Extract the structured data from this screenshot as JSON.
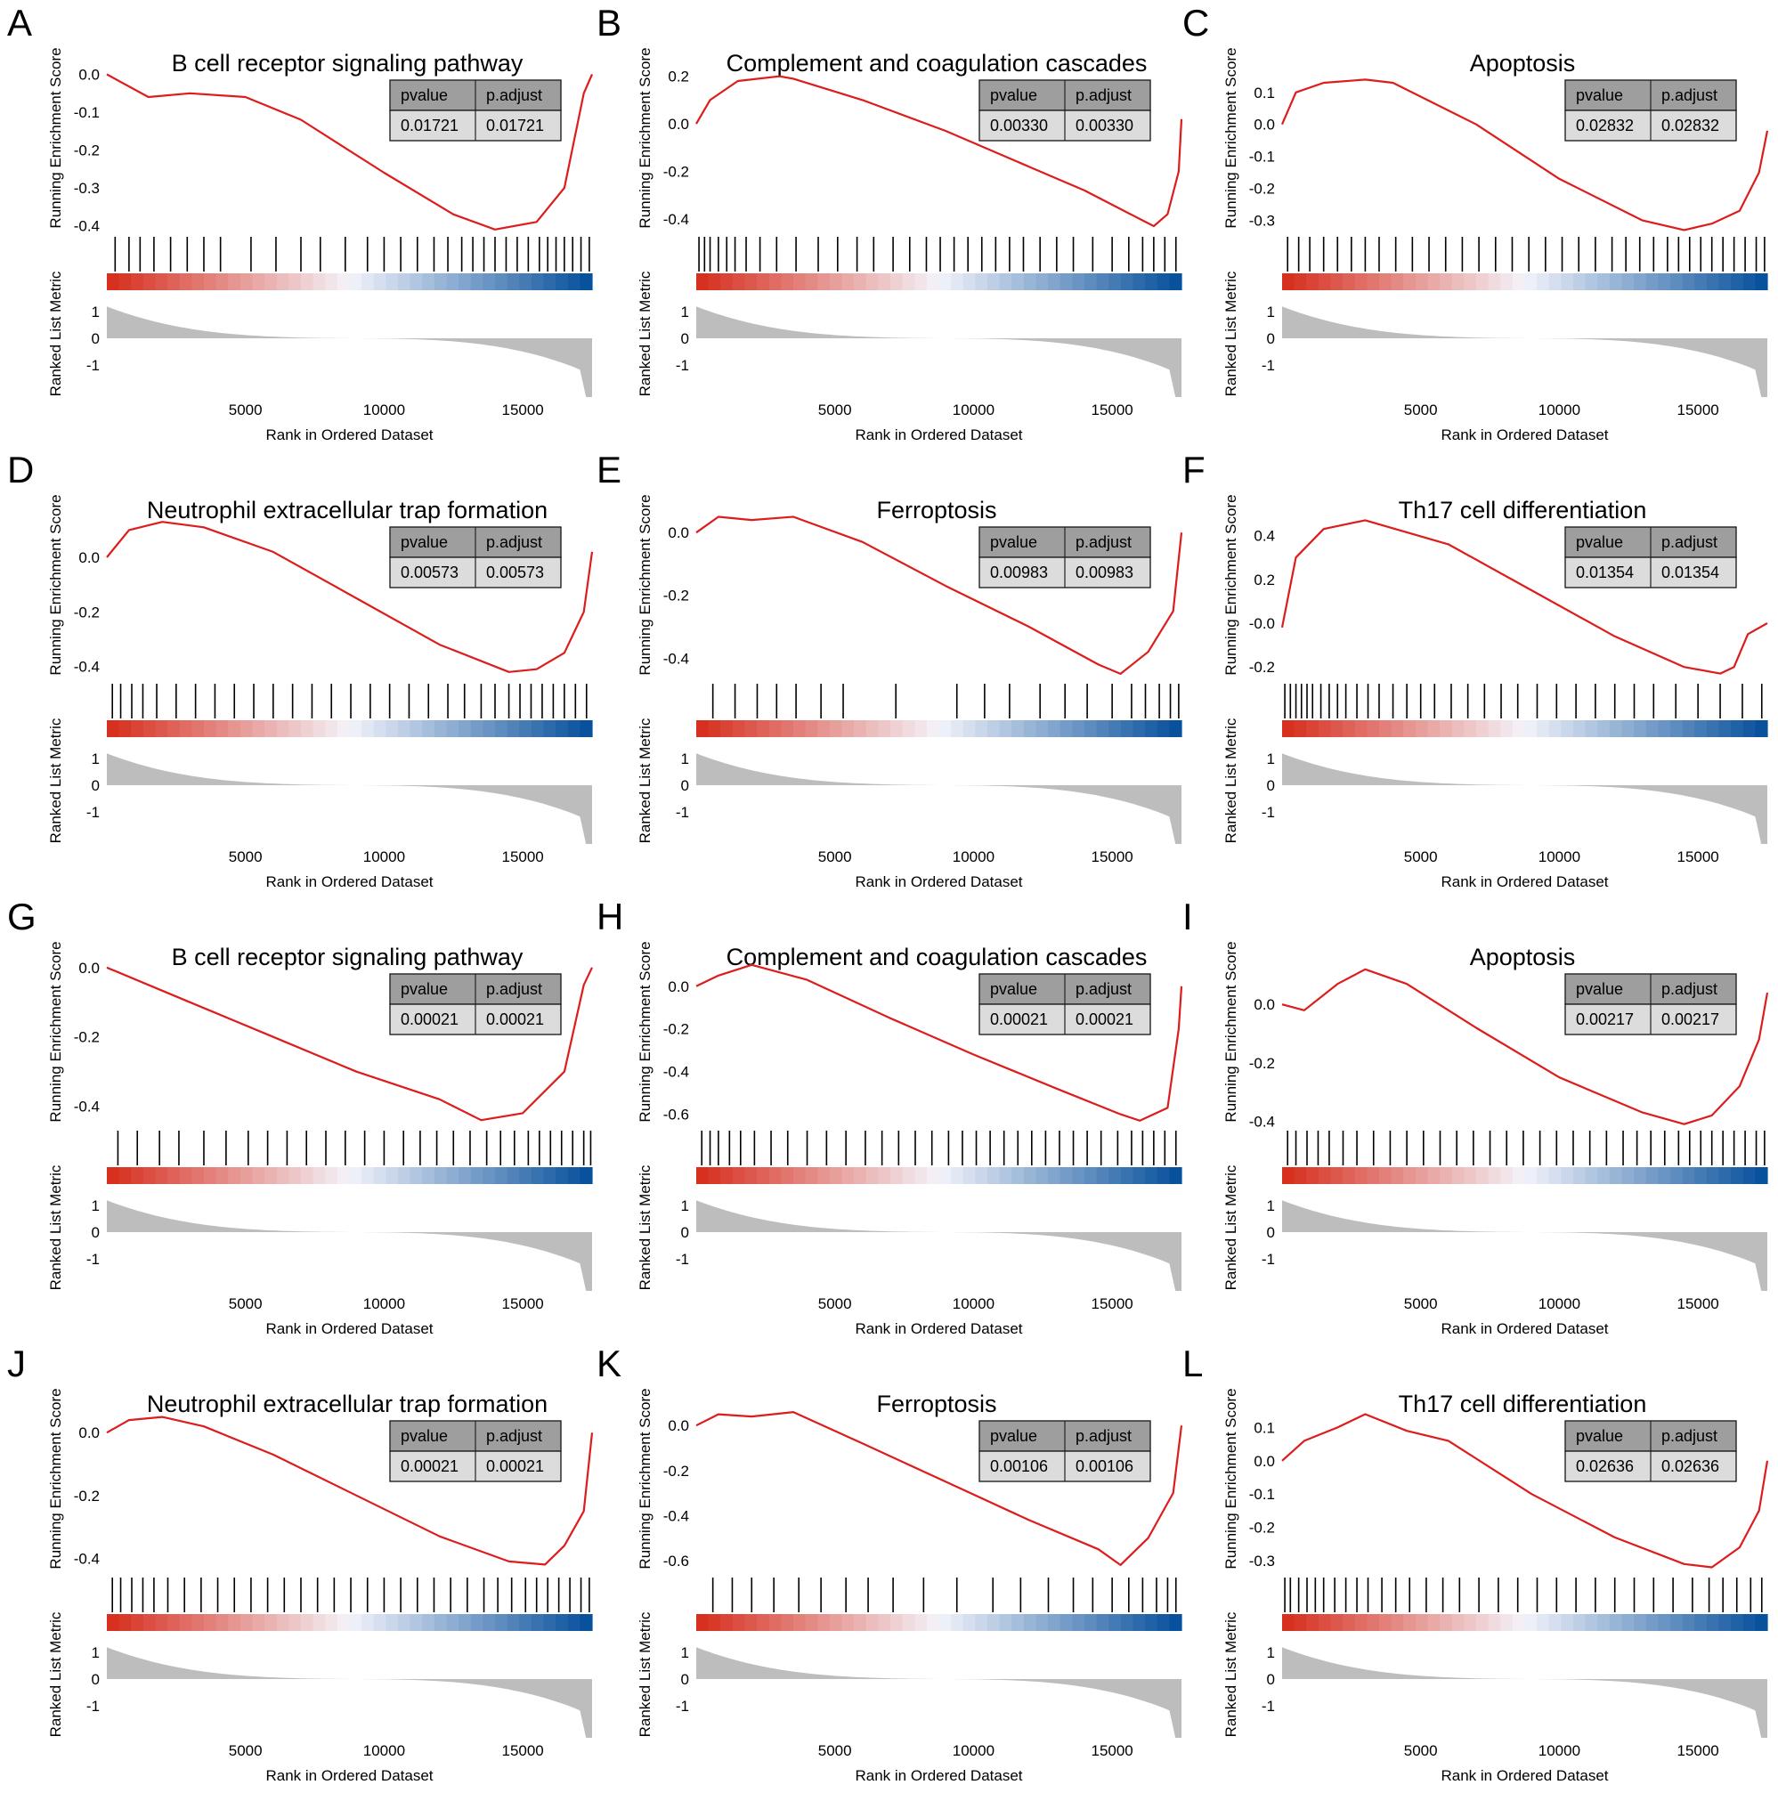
{
  "figure": {
    "x_axis_label": "Rank in Ordered Dataset",
    "es_axis_label": "Running Enrichment Score",
    "metric_axis_label": "Ranked List Metric",
    "table_headers": [
      "pvalue",
      "p.adjust"
    ],
    "metric_ticks": [
      1,
      0,
      -1
    ],
    "x_ticks": [
      5000,
      10000,
      15000
    ],
    "x_range": [
      1,
      17500
    ],
    "colors": {
      "curve": "#dd1c1c",
      "hit": "#000000",
      "metric_fill": "#bdbdbd",
      "table_header_bg": "#9e9e9e",
      "table_body_bg": "#dcdcdc",
      "heat_red": "#d7301f",
      "heat_blue": "#08519c"
    }
  },
  "chart_data": [
    {
      "letter": "A",
      "type": "line",
      "title": "B cell receptor signaling pathway",
      "pvalue": "0.01721",
      "padjust": "0.01721",
      "yticks": [
        "0.0",
        "-0.1",
        "-0.2",
        "-0.3",
        "-0.4"
      ],
      "ylim": [
        -0.42,
        0.02
      ],
      "curve": [
        [
          1,
          0.0
        ],
        [
          1500,
          -0.06
        ],
        [
          3000,
          -0.05
        ],
        [
          5000,
          -0.06
        ],
        [
          7000,
          -0.12
        ],
        [
          10000,
          -0.26
        ],
        [
          12500,
          -0.37
        ],
        [
          14000,
          -0.41
        ],
        [
          15500,
          -0.39
        ],
        [
          16500,
          -0.3
        ],
        [
          17200,
          -0.05
        ],
        [
          17500,
          0.0
        ]
      ],
      "hits": [
        300,
        800,
        1200,
        1700,
        2300,
        2900,
        3500,
        4100,
        5200,
        6100,
        7000,
        7700,
        8600,
        9400,
        10000,
        10600,
        11200,
        11800,
        12300,
        12800,
        13200,
        13600,
        14000,
        14400,
        14800,
        15200,
        15600,
        15900,
        16200,
        16500,
        16800,
        17100,
        17400
      ]
    },
    {
      "letter": "B",
      "type": "line",
      "title": "Complement and coagulation cascades",
      "pvalue": "0.00330",
      "padjust": "0.00330",
      "yticks": [
        "0.2",
        "0.0",
        "-0.2",
        "-0.4"
      ],
      "ylim": [
        -0.46,
        0.24
      ],
      "curve": [
        [
          1,
          0.0
        ],
        [
          500,
          0.1
        ],
        [
          1500,
          0.18
        ],
        [
          3000,
          0.2
        ],
        [
          3500,
          0.19
        ],
        [
          6000,
          0.1
        ],
        [
          9000,
          -0.03
        ],
        [
          12000,
          -0.18
        ],
        [
          14000,
          -0.28
        ],
        [
          16000,
          -0.4
        ],
        [
          16500,
          -0.43
        ],
        [
          17000,
          -0.38
        ],
        [
          17400,
          -0.2
        ],
        [
          17500,
          0.02
        ]
      ],
      "hits": [
        100,
        300,
        500,
        800,
        1100,
        1400,
        1800,
        2300,
        2900,
        3600,
        4400,
        5100,
        5800,
        6400,
        7100,
        7700,
        8300,
        8800,
        9300,
        9800,
        10300,
        10800,
        11300,
        11800,
        12400,
        13000,
        13600,
        14300,
        15000,
        15600,
        16100,
        16500,
        16900,
        17300
      ]
    },
    {
      "letter": "C",
      "type": "line",
      "title": "Apoptosis",
      "pvalue": "0.02832",
      "padjust": "0.02832",
      "yticks": [
        "0.1",
        "0.0",
        "-0.1",
        "-0.2",
        "-0.3"
      ],
      "ylim": [
        -0.34,
        0.18
      ],
      "curve": [
        [
          1,
          0.0
        ],
        [
          500,
          0.1
        ],
        [
          1500,
          0.13
        ],
        [
          3000,
          0.14
        ],
        [
          4000,
          0.13
        ],
        [
          7000,
          0.0
        ],
        [
          10000,
          -0.17
        ],
        [
          13000,
          -0.3
        ],
        [
          14500,
          -0.33
        ],
        [
          15500,
          -0.31
        ],
        [
          16500,
          -0.27
        ],
        [
          17200,
          -0.15
        ],
        [
          17500,
          -0.02
        ]
      ],
      "hits": [
        200,
        600,
        1000,
        1500,
        2000,
        2500,
        3000,
        3500,
        4100,
        4700,
        5300,
        5900,
        6500,
        7100,
        7700,
        8300,
        8900,
        9500,
        10100,
        10700,
        11300,
        11900,
        12400,
        12900,
        13400,
        13900,
        14300,
        14700,
        15100,
        15500,
        15900,
        16300,
        16700,
        17100,
        17400
      ]
    },
    {
      "letter": "D",
      "type": "line",
      "title": "Neutrophil extracellular trap formation",
      "pvalue": "0.00573",
      "padjust": "0.00573",
      "yticks": [
        "0.0",
        "-0.2",
        "-0.4"
      ],
      "ylim": [
        -0.45,
        0.16
      ],
      "curve": [
        [
          1,
          0.0
        ],
        [
          800,
          0.1
        ],
        [
          2000,
          0.13
        ],
        [
          3500,
          0.11
        ],
        [
          6000,
          0.02
        ],
        [
          9000,
          -0.15
        ],
        [
          12000,
          -0.32
        ],
        [
          14500,
          -0.42
        ],
        [
          15500,
          -0.41
        ],
        [
          16500,
          -0.35
        ],
        [
          17200,
          -0.2
        ],
        [
          17500,
          0.02
        ]
      ],
      "hits": [
        200,
        500,
        900,
        1300,
        1800,
        2500,
        3200,
        3900,
        4600,
        5300,
        6000,
        6700,
        7400,
        8100,
        8800,
        9500,
        10200,
        10900,
        11600,
        12300,
        12900,
        13500,
        14000,
        14500,
        14900,
        15300,
        15700,
        16100,
        16500,
        16900,
        17300
      ]
    },
    {
      "letter": "E",
      "type": "line",
      "title": "Ferroptosis",
      "pvalue": "0.00983",
      "padjust": "0.00983",
      "yticks": [
        "0.0",
        "-0.2",
        "-0.4"
      ],
      "ylim": [
        -0.47,
        0.06
      ],
      "curve": [
        [
          1,
          0.0
        ],
        [
          800,
          0.05
        ],
        [
          2000,
          0.04
        ],
        [
          3500,
          0.05
        ],
        [
          6000,
          -0.03
        ],
        [
          9000,
          -0.17
        ],
        [
          12000,
          -0.3
        ],
        [
          14500,
          -0.42
        ],
        [
          15300,
          -0.45
        ],
        [
          16300,
          -0.38
        ],
        [
          17200,
          -0.25
        ],
        [
          17500,
          0.0
        ]
      ],
      "hits": [
        600,
        1400,
        2200,
        2900,
        3600,
        4500,
        5300,
        7200,
        9400,
        10400,
        11300,
        12400,
        13300,
        14100,
        15000,
        15700,
        16200,
        16700,
        17100,
        17400
      ]
    },
    {
      "letter": "F",
      "type": "line",
      "title": "Th17 cell differentiation",
      "pvalue": "0.01354",
      "padjust": "0.01354",
      "yticks": [
        "0.4",
        "0.2",
        "-0.0",
        "-0.2"
      ],
      "ylim": [
        -0.26,
        0.5
      ],
      "curve": [
        [
          1,
          -0.02
        ],
        [
          500,
          0.3
        ],
        [
          1500,
          0.43
        ],
        [
          3000,
          0.47
        ],
        [
          6000,
          0.36
        ],
        [
          9000,
          0.15
        ],
        [
          12000,
          -0.06
        ],
        [
          14500,
          -0.2
        ],
        [
          15800,
          -0.23
        ],
        [
          16300,
          -0.2
        ],
        [
          16800,
          -0.05
        ],
        [
          17500,
          0.0
        ]
      ],
      "hits": [
        100,
        300,
        500,
        700,
        900,
        1100,
        1400,
        1700,
        2000,
        2300,
        2700,
        3100,
        3500,
        4000,
        4500,
        5000,
        5500,
        6100,
        6700,
        7300,
        7900,
        8500,
        9200,
        9900,
        10600,
        11300,
        12000,
        12700,
        13400,
        14200,
        15000,
        15800,
        16600,
        17300
      ]
    },
    {
      "letter": "G",
      "type": "line",
      "title": "B cell receptor signaling pathway",
      "pvalue": "0.00021",
      "padjust": "0.00021",
      "yticks": [
        "0.0",
        "-0.2",
        "-0.4"
      ],
      "ylim": [
        -0.46,
        0.02
      ],
      "curve": [
        [
          1,
          0.0
        ],
        [
          1500,
          -0.05
        ],
        [
          3000,
          -0.1
        ],
        [
          6000,
          -0.2
        ],
        [
          9000,
          -0.3
        ],
        [
          12000,
          -0.38
        ],
        [
          13500,
          -0.44
        ],
        [
          15000,
          -0.42
        ],
        [
          16500,
          -0.3
        ],
        [
          17200,
          -0.05
        ],
        [
          17500,
          0.0
        ]
      ],
      "hits": [
        400,
        1100,
        1900,
        2600,
        3500,
        4300,
        5100,
        5800,
        6500,
        7200,
        7900,
        8600,
        9300,
        10000,
        10700,
        11300,
        11900,
        12500,
        13100,
        13700,
        14200,
        14700,
        15200,
        15600,
        16000,
        16400,
        16800,
        17200,
        17450
      ]
    },
    {
      "letter": "H",
      "type": "line",
      "title": "Complement and coagulation cascades",
      "pvalue": "0.00021",
      "padjust": "0.00021",
      "yticks": [
        "0.0",
        "-0.2",
        "-0.4",
        "-0.6"
      ],
      "ylim": [
        -0.66,
        0.12
      ],
      "curve": [
        [
          1,
          0.0
        ],
        [
          800,
          0.05
        ],
        [
          2000,
          0.1
        ],
        [
          4000,
          0.03
        ],
        [
          7000,
          -0.15
        ],
        [
          10000,
          -0.32
        ],
        [
          13000,
          -0.48
        ],
        [
          15300,
          -0.6
        ],
        [
          16000,
          -0.63
        ],
        [
          17000,
          -0.57
        ],
        [
          17400,
          -0.2
        ],
        [
          17500,
          0.0
        ]
      ],
      "hits": [
        200,
        500,
        800,
        1200,
        1600,
        2100,
        2700,
        3300,
        4000,
        4700,
        5400,
        6100,
        6700,
        7300,
        7900,
        8500,
        9100,
        9600,
        10100,
        10600,
        11100,
        11600,
        12100,
        12600,
        13100,
        13600,
        14100,
        14600,
        15200,
        15700,
        16100,
        16500,
        16900,
        17300
      ]
    },
    {
      "letter": "I",
      "type": "line",
      "title": "Apoptosis",
      "pvalue": "0.00217",
      "padjust": "0.00217",
      "yticks": [
        "0.0",
        "-0.2",
        "-0.4"
      ],
      "ylim": [
        -0.42,
        0.15
      ],
      "curve": [
        [
          1,
          0.0
        ],
        [
          800,
          -0.02
        ],
        [
          2000,
          0.07
        ],
        [
          3000,
          0.12
        ],
        [
          4500,
          0.07
        ],
        [
          7000,
          -0.08
        ],
        [
          10000,
          -0.25
        ],
        [
          13000,
          -0.37
        ],
        [
          14500,
          -0.41
        ],
        [
          15500,
          -0.38
        ],
        [
          16500,
          -0.28
        ],
        [
          17200,
          -0.12
        ],
        [
          17500,
          0.04
        ]
      ],
      "hits": [
        200,
        500,
        900,
        1300,
        1700,
        2200,
        2700,
        3300,
        3900,
        4500,
        5100,
        5700,
        6300,
        6900,
        7500,
        8100,
        8700,
        9300,
        9900,
        10500,
        11100,
        11700,
        12300,
        12800,
        13300,
        13800,
        14300,
        14700,
        15100,
        15500,
        15900,
        16300,
        16700,
        17100,
        17400
      ]
    },
    {
      "letter": "J",
      "type": "line",
      "title": "Neutrophil extracellular trap formation",
      "pvalue": "0.00021",
      "padjust": "0.00021",
      "yticks": [
        "0.0",
        "-0.2",
        "-0.4"
      ],
      "ylim": [
        -0.45,
        0.08
      ],
      "curve": [
        [
          1,
          0.0
        ],
        [
          800,
          0.04
        ],
        [
          2000,
          0.05
        ],
        [
          3500,
          0.02
        ],
        [
          6000,
          -0.07
        ],
        [
          9000,
          -0.2
        ],
        [
          12000,
          -0.33
        ],
        [
          14500,
          -0.41
        ],
        [
          15800,
          -0.42
        ],
        [
          16500,
          -0.36
        ],
        [
          17200,
          -0.25
        ],
        [
          17500,
          0.0
        ]
      ],
      "hits": [
        200,
        500,
        900,
        1300,
        1700,
        2200,
        2800,
        3400,
        4000,
        4600,
        5200,
        5800,
        6400,
        7000,
        7600,
        8200,
        8800,
        9400,
        10000,
        10600,
        11200,
        11800,
        12400,
        13000,
        13600,
        14100,
        14600,
        15100,
        15500,
        15900,
        16300,
        16700,
        17100,
        17400
      ]
    },
    {
      "letter": "K",
      "type": "line",
      "title": "Ferroptosis",
      "pvalue": "0.00106",
      "padjust": "0.00106",
      "yticks": [
        "0.0",
        "-0.2",
        "-0.4",
        "-0.6"
      ],
      "ylim": [
        -0.66,
        0.08
      ],
      "curve": [
        [
          1,
          0.0
        ],
        [
          800,
          0.05
        ],
        [
          2000,
          0.04
        ],
        [
          3500,
          0.06
        ],
        [
          6000,
          -0.08
        ],
        [
          9000,
          -0.25
        ],
        [
          12000,
          -0.42
        ],
        [
          14500,
          -0.55
        ],
        [
          15300,
          -0.62
        ],
        [
          16300,
          -0.5
        ],
        [
          17200,
          -0.3
        ],
        [
          17500,
          0.0
        ]
      ],
      "hits": [
        600,
        1300,
        2000,
        2800,
        3700,
        4500,
        5400,
        6200,
        7100,
        8200,
        9400,
        10700,
        11700,
        12700,
        13600,
        14300,
        15000,
        15600,
        16100,
        16600,
        17000,
        17300
      ]
    },
    {
      "letter": "L",
      "type": "line",
      "title": "Th17 cell differentiation",
      "pvalue": "0.02636",
      "padjust": "0.02636",
      "yticks": [
        "0.1",
        "0.0",
        "-0.1",
        "-0.2",
        "-0.3"
      ],
      "ylim": [
        -0.34,
        0.16
      ],
      "curve": [
        [
          1,
          0.0
        ],
        [
          800,
          0.06
        ],
        [
          2000,
          0.1
        ],
        [
          3000,
          0.14
        ],
        [
          4500,
          0.09
        ],
        [
          6000,
          0.06
        ],
        [
          9000,
          -0.1
        ],
        [
          12000,
          -0.23
        ],
        [
          14500,
          -0.31
        ],
        [
          15500,
          -0.32
        ],
        [
          16500,
          -0.26
        ],
        [
          17200,
          -0.15
        ],
        [
          17500,
          0.0
        ]
      ],
      "hits": [
        100,
        300,
        600,
        900,
        1200,
        1500,
        1900,
        2300,
        2700,
        3100,
        3600,
        4100,
        4600,
        5200,
        5800,
        6400,
        7100,
        7800,
        8500,
        9200,
        9900,
        10600,
        11300,
        12000,
        12700,
        13400,
        14100,
        14800,
        15400,
        15900,
        16400,
        16900,
        17300
      ]
    }
  ]
}
